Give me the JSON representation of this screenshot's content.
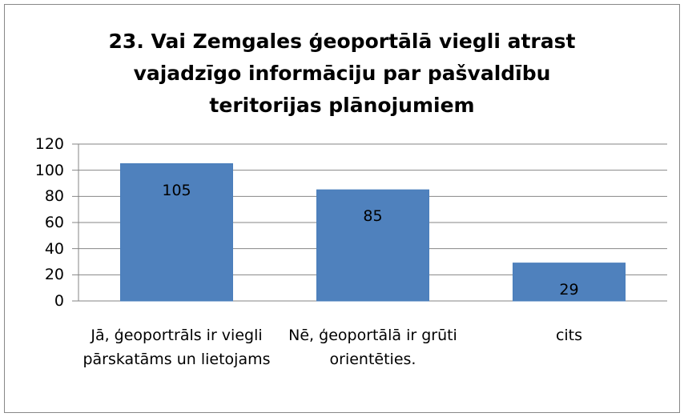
{
  "chart_data": {
    "type": "bar",
    "title": "23. Vai Zemgales ģeoportālā viegli atrast vajadzīgo informāciju par pašvaldību teritorijas plānojumiem",
    "categories": [
      "Jā, ģeoportrāls ir viegli pārskatāms un lietojams",
      "Nē, ģeoportālā ir grūti orientēties.",
      "cits"
    ],
    "values": [
      105,
      85,
      29
    ],
    "color": "#4f81bd",
    "ylim": [
      0,
      120
    ],
    "yticks": [
      0,
      20,
      40,
      60,
      80,
      100,
      120
    ],
    "grid": true
  }
}
